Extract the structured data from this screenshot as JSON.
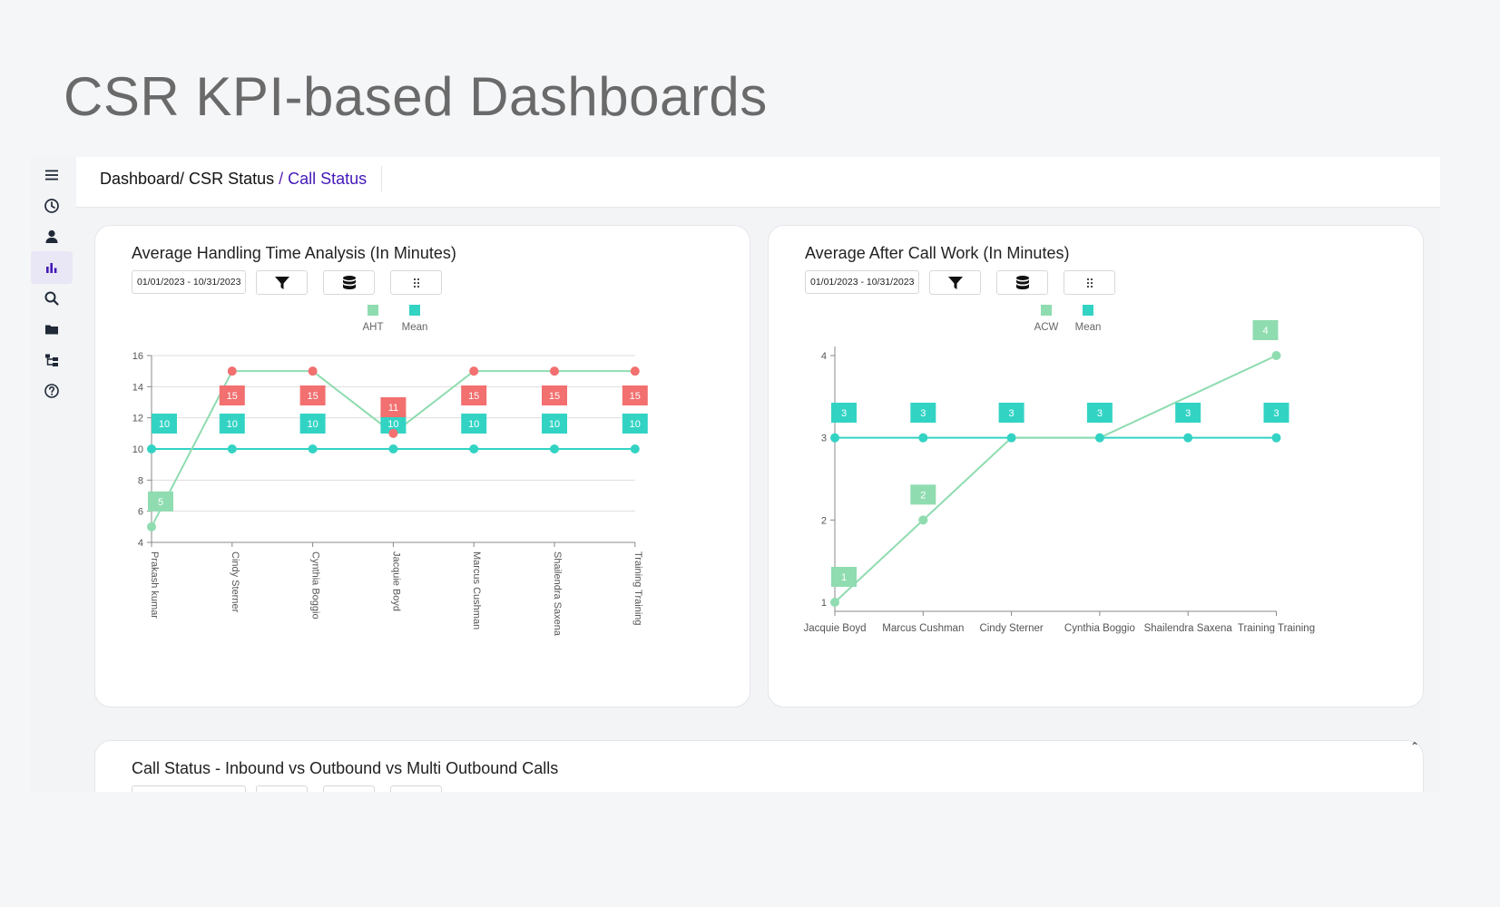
{
  "page_title": "CSR KPI-based Dashboards",
  "sidebar": {
    "items": [
      {
        "icon": "menu-icon"
      },
      {
        "icon": "clock-icon"
      },
      {
        "icon": "user-icon"
      },
      {
        "icon": "bar-chart-icon",
        "active": true
      },
      {
        "icon": "search-icon"
      },
      {
        "icon": "folder-icon"
      },
      {
        "icon": "hierarchy-icon"
      },
      {
        "icon": "help-icon"
      }
    ]
  },
  "breadcrumb": {
    "dashboard": "Dashboard/ CSR Status",
    "separator": "/",
    "current": "Call Status"
  },
  "cards": {
    "aht": {
      "title": "Average Handling Time Analysis (In Minutes)",
      "date_range": "01/01/2023 - 10/31/2023",
      "legend": [
        "AHT",
        "Mean"
      ]
    },
    "acw": {
      "title": "Average After Call Work (In Minutes)",
      "date_range": "01/01/2023 - 10/31/2023",
      "legend": [
        "ACW",
        "Mean"
      ]
    },
    "calls": {
      "title": "Call Status - Inbound vs Outbound vs Multi Outbound Calls"
    }
  },
  "colors": {
    "primary": "#4318b8",
    "series_a": "#8fdcb0",
    "mean": "#33d3c4",
    "high": "#f27070"
  },
  "chart_data": [
    {
      "type": "line",
      "categories": [
        "Prakash kumar",
        "Cindy Sterner",
        "Cynthia Boggio",
        "Jacquie Boyd",
        "Marcus Cushman",
        "Shailendra Saxena",
        "Training Training"
      ],
      "series": [
        {
          "name": "AHT",
          "values": [
            5,
            15,
            15,
            11,
            15,
            15,
            15
          ]
        },
        {
          "name": "Mean",
          "values": [
            10,
            10,
            10,
            10,
            10,
            10,
            10
          ]
        }
      ],
      "ylim": [
        4,
        16
      ],
      "yticks": [
        4,
        6,
        8,
        10,
        12,
        14,
        16
      ],
      "legend_position": "top-center",
      "grid": true
    },
    {
      "type": "line",
      "categories": [
        "Jacquie Boyd",
        "Marcus Cushman",
        "Cindy Sterner",
        "Cynthia Boggio",
        "Shailendra Saxena",
        "Training Training"
      ],
      "series": [
        {
          "name": "ACW",
          "values": [
            1,
            2,
            3,
            3,
            3.5,
            4
          ]
        },
        {
          "name": "Mean",
          "values": [
            3,
            3,
            3,
            3,
            3,
            3
          ]
        }
      ],
      "ylim": [
        1,
        4
      ],
      "yticks": [
        1,
        2,
        3,
        4
      ],
      "legend_position": "top-center",
      "grid": false,
      "labeled_points": {
        "ACW": [
          0,
          1,
          5
        ]
      }
    }
  ]
}
